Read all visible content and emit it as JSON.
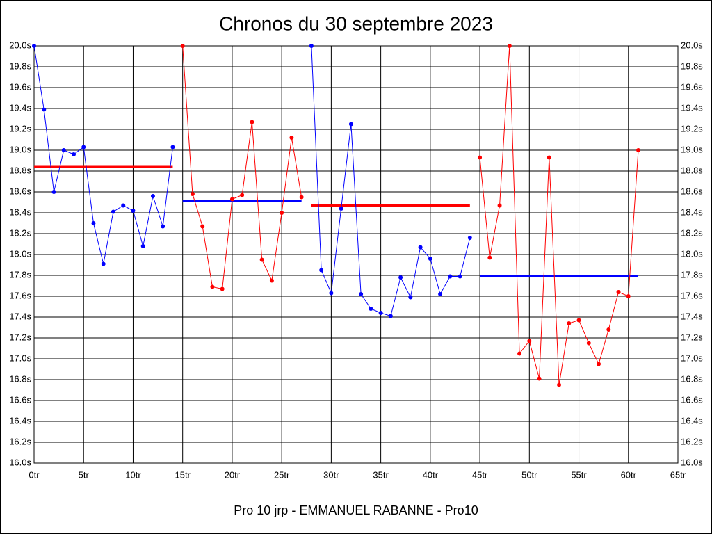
{
  "chart_data": {
    "type": "line",
    "title": "Chronos du 30 septembre 2023",
    "xlabel": "Pro 10 jrp - EMMANUEL RABANNE - Pro10",
    "xlim": [
      0,
      65
    ],
    "ylim": [
      16,
      20
    ],
    "grid": true,
    "xticks": [
      {
        "value": 0,
        "label": "0tr"
      },
      {
        "value": 5,
        "label": "5tr"
      },
      {
        "value": 10,
        "label": "10tr"
      },
      {
        "value": 15,
        "label": "15tr"
      },
      {
        "value": 20,
        "label": "20tr"
      },
      {
        "value": 25,
        "label": "25tr"
      },
      {
        "value": 30,
        "label": "30tr"
      },
      {
        "value": 35,
        "label": "35tr"
      },
      {
        "value": 40,
        "label": "40tr"
      },
      {
        "value": 45,
        "label": "45tr"
      },
      {
        "value": 50,
        "label": "50tr"
      },
      {
        "value": 55,
        "label": "55tr"
      },
      {
        "value": 60,
        "label": "60tr"
      },
      {
        "value": 65,
        "label": "65tr"
      }
    ],
    "yticks": [
      {
        "value": 16,
        "label": "16.0s"
      },
      {
        "value": 16.2,
        "label": "16.2s"
      },
      {
        "value": 16.4,
        "label": "16.4s"
      },
      {
        "value": 16.6,
        "label": "16.6s"
      },
      {
        "value": 16.8,
        "label": "16.8s"
      },
      {
        "value": 17,
        "label": "17.0s"
      },
      {
        "value": 17.2,
        "label": "17.2s"
      },
      {
        "value": 17.4,
        "label": "17.4s"
      },
      {
        "value": 17.6,
        "label": "17.6s"
      },
      {
        "value": 17.8,
        "label": "17.8s"
      },
      {
        "value": 18,
        "label": "18.0s"
      },
      {
        "value": 18.2,
        "label": "18.2s"
      },
      {
        "value": 18.4,
        "label": "18.4s"
      },
      {
        "value": 18.6,
        "label": "18.6s"
      },
      {
        "value": 18.8,
        "label": "18.8s"
      },
      {
        "value": 19,
        "label": "19.0s"
      },
      {
        "value": 19.2,
        "label": "19.2s"
      },
      {
        "value": 19.4,
        "label": "19.4s"
      },
      {
        "value": 19.6,
        "label": "19.6s"
      },
      {
        "value": 19.8,
        "label": "19.8s"
      },
      {
        "value": 20,
        "label": "20.0s"
      }
    ],
    "series": [
      {
        "color": "#0000ff",
        "mean": 18.84,
        "mean_color": "#ff0000",
        "x": [
          0,
          1,
          2,
          3,
          4,
          5,
          6,
          7,
          8,
          9,
          10,
          11,
          12,
          13,
          14
        ],
        "values": [
          20.0,
          19.39,
          18.6,
          19.0,
          18.96,
          19.03,
          18.3,
          17.91,
          18.41,
          18.47,
          18.42,
          18.08,
          18.56,
          18.27,
          19.03
        ]
      },
      {
        "color": "#ff0000",
        "mean": 18.51,
        "mean_color": "#0000ff",
        "x": [
          15,
          16,
          17,
          18,
          19,
          20,
          21,
          22,
          23,
          24,
          25,
          26,
          27
        ],
        "values": [
          20.0,
          18.58,
          18.27,
          17.69,
          17.67,
          18.53,
          18.57,
          19.27,
          17.95,
          17.75,
          18.4,
          19.12,
          18.55
        ]
      },
      {
        "color": "#0000ff",
        "mean": 18.47,
        "mean_color": "#ff0000",
        "x": [
          28,
          29,
          30,
          31,
          32,
          33,
          34,
          35,
          36,
          37,
          38,
          39,
          40,
          41,
          42,
          43,
          44
        ],
        "values": [
          20.0,
          17.85,
          17.63,
          18.44,
          19.25,
          17.62,
          17.48,
          17.44,
          17.41,
          17.78,
          17.59,
          18.07,
          17.96,
          17.62,
          17.79,
          17.79,
          18.16
        ]
      },
      {
        "color": "#ff0000",
        "mean": 17.79,
        "mean_color": "#0000ff",
        "x": [
          45,
          46,
          47,
          48,
          49,
          50,
          51,
          52,
          53,
          54,
          55,
          56,
          57,
          58,
          59,
          60,
          61
        ],
        "values": [
          18.93,
          17.97,
          18.47,
          20.0,
          17.05,
          17.17,
          16.81,
          18.93,
          16.75,
          17.34,
          17.37,
          17.15,
          16.95,
          17.28,
          17.64,
          17.6,
          19.0
        ]
      }
    ]
  }
}
